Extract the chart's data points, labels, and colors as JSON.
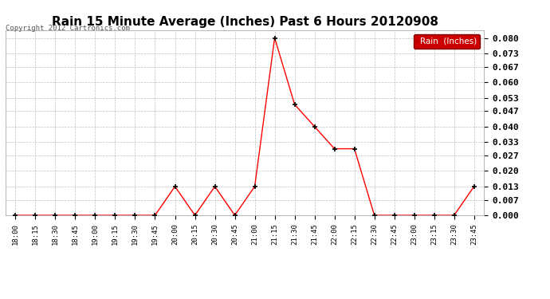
{
  "title": "Rain 15 Minute Average (Inches) Past 6 Hours 20120908",
  "copyright": "Copyright 2012 Cartronics.com",
  "legend_label": "Rain  (Inches)",
  "x_labels": [
    "18:00",
    "18:15",
    "18:30",
    "18:45",
    "19:00",
    "19:15",
    "19:30",
    "19:45",
    "20:00",
    "20:15",
    "20:30",
    "20:45",
    "21:00",
    "21:15",
    "21:30",
    "21:45",
    "22:00",
    "22:15",
    "22:30",
    "22:45",
    "23:00",
    "23:15",
    "23:30",
    "23:45"
  ],
  "y_values": [
    0.0,
    0.0,
    0.0,
    0.0,
    0.0,
    0.0,
    0.0,
    0.0,
    0.013,
    0.0,
    0.013,
    0.0,
    0.013,
    0.08,
    0.05,
    0.04,
    0.03,
    0.03,
    0.0,
    0.0,
    0.0,
    0.0,
    0.0,
    0.013
  ],
  "y_ticks": [
    0.0,
    0.007,
    0.013,
    0.02,
    0.027,
    0.033,
    0.04,
    0.047,
    0.053,
    0.06,
    0.067,
    0.073,
    0.08
  ],
  "ylim": [
    0.0,
    0.0836
  ],
  "line_color": "#ff0000",
  "marker_color": "#000000",
  "bg_color": "#ffffff",
  "grid_color": "#c0c0c0",
  "title_fontsize": 11,
  "legend_bg": "#cc0000",
  "legend_text_color": "#ffffff"
}
